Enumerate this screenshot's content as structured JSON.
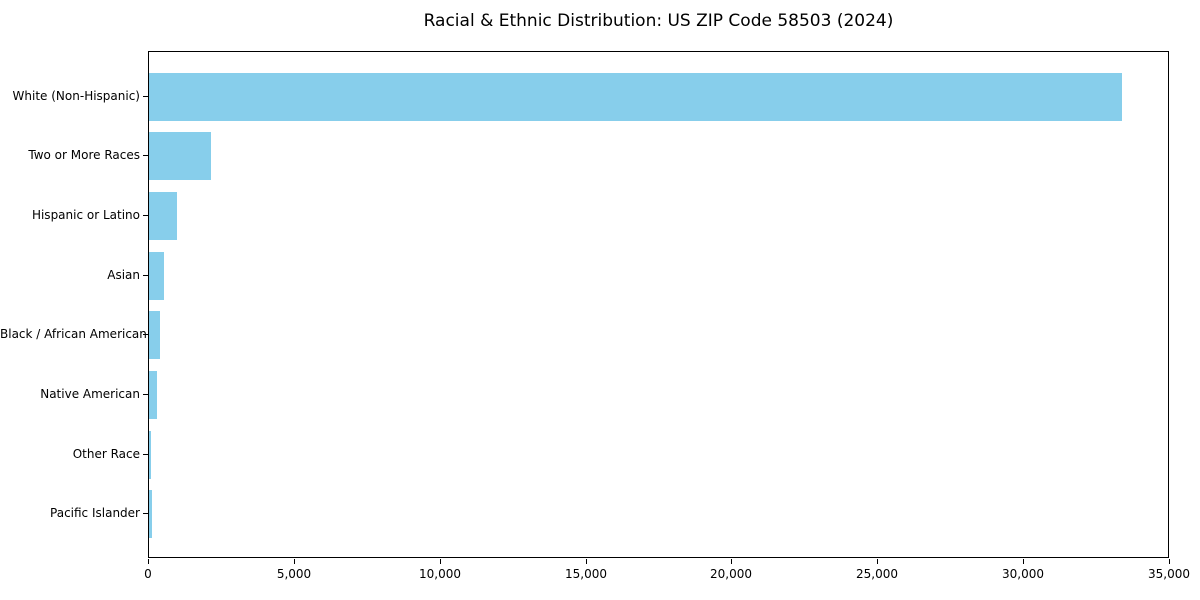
{
  "chart_data": {
    "type": "bar",
    "orientation": "horizontal",
    "title": "Racial & Ethnic Distribution: US ZIP Code 58503 (2024)",
    "categories": [
      "White (Non-Hispanic)",
      "Two or More Races",
      "Hispanic or Latino",
      "Asian",
      "Black / African American",
      "Native American",
      "Other Race",
      "Pacific Islander"
    ],
    "values": [
      33350,
      2130,
      960,
      510,
      380,
      270,
      70,
      90
    ],
    "xlabel": "",
    "ylabel": "",
    "xlim": [
      0,
      35000
    ],
    "xticks": [
      0,
      5000,
      10000,
      15000,
      20000,
      25000,
      30000,
      35000
    ],
    "xtick_labels": [
      "0",
      "5,000",
      "10,000",
      "15,000",
      "20,000",
      "25,000",
      "30,000",
      "35,000"
    ],
    "bar_color": "#87CEEB",
    "axis_color": "#000000",
    "background_color": "#ffffff",
    "grid": false,
    "legend": null
  }
}
